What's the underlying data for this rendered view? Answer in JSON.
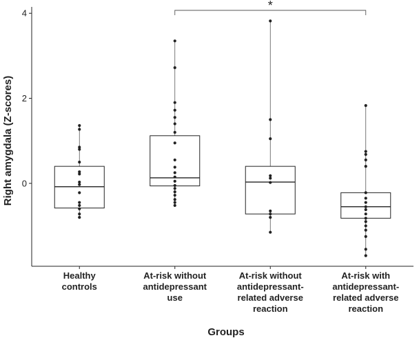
{
  "chart_data": {
    "type": "box",
    "xlabel": "Groups",
    "ylabel": "Right amygdala (Z-scores)",
    "ylim": [
      -1.95,
      4.15
    ],
    "yticks": [
      0,
      2,
      4
    ],
    "grid": false,
    "legend": "none",
    "categories": [
      [
        "Healthy",
        "controls"
      ],
      [
        "At-risk without",
        "antidepressant",
        "use"
      ],
      [
        "At-risk without",
        "antidepressant-",
        "related adverse",
        "reaction"
      ],
      [
        "At-risk with",
        "antidepressant-",
        "related adverse",
        "reaction"
      ]
    ],
    "boxes": [
      {
        "q1": -0.58,
        "median": -0.08,
        "q3": 0.4,
        "whisker_low": -0.8,
        "whisker_high": 1.36
      },
      {
        "q1": -0.06,
        "median": 0.13,
        "q3": 1.12,
        "whisker_low": -0.52,
        "whisker_high": 3.35
      },
      {
        "q1": -0.72,
        "median": 0.03,
        "q3": 0.4,
        "whisker_low": -1.15,
        "whisker_high": 3.82
      },
      {
        "q1": -0.82,
        "median": -0.55,
        "q3": -0.22,
        "whisker_low": -1.72,
        "whisker_high": 1.83
      }
    ],
    "points": [
      [
        1.36,
        1.27,
        0.85,
        0.8,
        0.5,
        0.27,
        0.22,
        0.03,
        -0.03,
        -0.22,
        -0.45,
        -0.52,
        -0.6,
        -0.72,
        -0.8
      ],
      [
        3.35,
        2.72,
        1.9,
        1.72,
        1.55,
        1.4,
        1.2,
        0.95,
        0.55,
        0.38,
        0.25,
        0.15,
        0.05,
        -0.05,
        -0.12,
        -0.2,
        -0.28,
        -0.38,
        -0.45,
        -0.52
      ],
      [
        3.82,
        1.5,
        1.05,
        0.18,
        0.12,
        0.02,
        -0.65,
        -0.72,
        -0.8,
        -1.15
      ],
      [
        1.83,
        0.75,
        0.68,
        0.55,
        0.4,
        -0.22,
        -0.35,
        -0.45,
        -0.55,
        -0.62,
        -0.72,
        -0.82,
        -0.9,
        -1.0,
        -1.1,
        -1.25,
        -1.55,
        -1.7
      ]
    ],
    "significance": {
      "from": 1,
      "to": 3,
      "label": "*"
    }
  }
}
